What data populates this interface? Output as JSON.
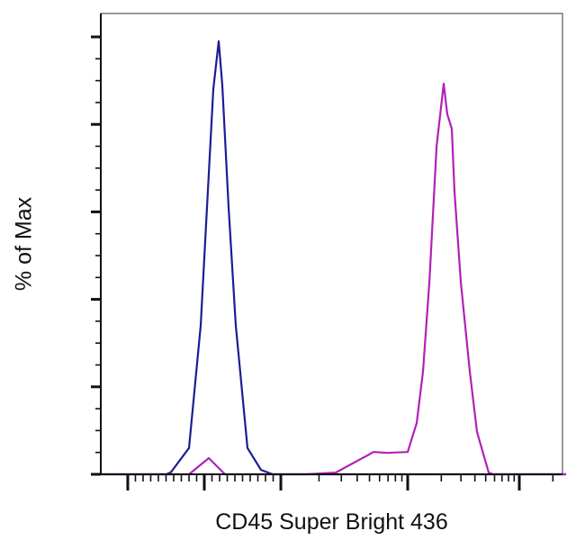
{
  "chart_data": {
    "type": "line",
    "title": "",
    "xlabel": "CD45 Super Bright 436",
    "ylabel": "% of Max",
    "x_scale": "biexponential",
    "xlim": [
      -1350,
      262144
    ],
    "ylim": [
      0,
      105
    ],
    "x_major_ticks": [
      -1000,
      0,
      1000,
      10000,
      100000
    ],
    "y_major_ticks": [
      0,
      20,
      40,
      60,
      80,
      100
    ],
    "tick_labels_shown": false,
    "grid": false,
    "legend": "none",
    "series": [
      {
        "color": "#1c1c96",
        "points": [
          [
            -1350,
            0
          ],
          [
            -494,
            0
          ],
          [
            -435,
            0.5
          ],
          [
            -200,
            6
          ],
          [
            -47,
            34
          ],
          [
            35,
            61
          ],
          [
            118,
            88
          ],
          [
            188,
            99
          ],
          [
            235,
            89
          ],
          [
            318,
            61
          ],
          [
            412,
            34
          ],
          [
            565,
            6
          ],
          [
            741,
            1
          ],
          [
            894,
            0
          ],
          [
            262144,
            0
          ]
        ]
      },
      {
        "color": "#b022b8",
        "points": [
          [
            -1350,
            0
          ],
          [
            -200,
            0
          ],
          [
            59,
            3.7
          ],
          [
            270,
            0
          ],
          [
            1580,
            0
          ],
          [
            2710,
            0.4
          ],
          [
            4950,
            4.5
          ],
          [
            5370,
            5.1
          ],
          [
            6870,
            4.9
          ],
          [
            10000,
            5.1
          ],
          [
            12040,
            11.7
          ],
          [
            13710,
            23.5
          ],
          [
            15630,
            44
          ],
          [
            18140,
            75
          ],
          [
            21020,
            89.3
          ],
          [
            22650,
            82.3
          ],
          [
            24820,
            79
          ],
          [
            26240,
            64.6
          ],
          [
            29920,
            44
          ],
          [
            35980,
            23.5
          ],
          [
            41770,
            9.7
          ],
          [
            53200,
            0.4
          ],
          [
            58350,
            0
          ],
          [
            262144,
            0
          ]
        ]
      }
    ]
  }
}
